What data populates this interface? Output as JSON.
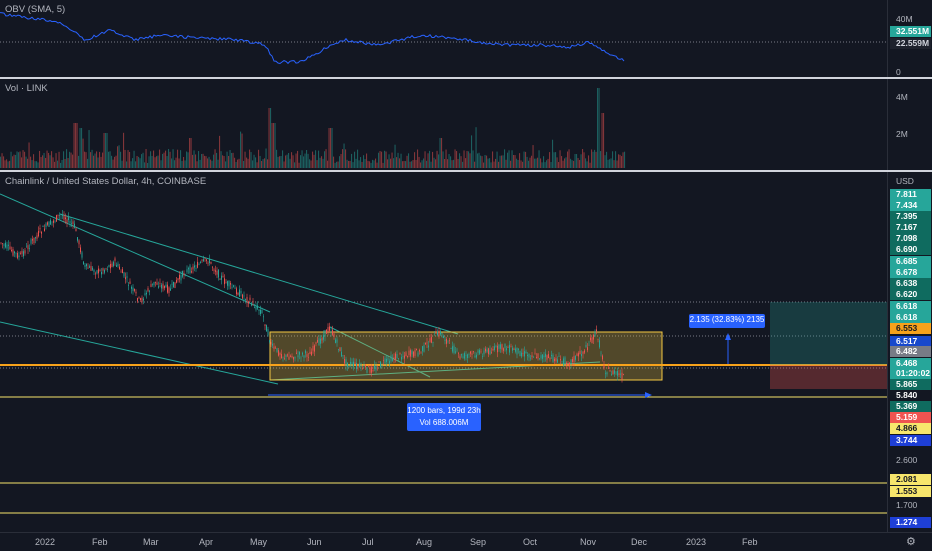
{
  "obv": {
    "title": "OBV (SMA, 5)",
    "ticks": [
      "40M",
      "0"
    ],
    "labels": [
      {
        "text": "32.551M",
        "bg": "#26a69a",
        "fg": "#ffffff"
      },
      {
        "text": "22.559M",
        "bg": "#1e222d",
        "fg": "#d1d4dc"
      }
    ],
    "line_color": "#2962ff"
  },
  "vol": {
    "title": "Vol · LINK",
    "ticks": [
      "4M",
      "2M"
    ]
  },
  "main": {
    "title": "Chainlink / United States Dollar, 4h, COINBASE",
    "currency": "USD",
    "ticks": [
      "2.600",
      "1.700"
    ],
    "price_labels": [
      {
        "text": "7.811",
        "bg": "#26a69a",
        "fg": "#ffffff"
      },
      {
        "text": "7.434",
        "bg": "#26a69a",
        "fg": "#ffffff"
      },
      {
        "text": "7.395",
        "bg": "#0f6b5f",
        "fg": "#ffffff"
      },
      {
        "text": "7.167",
        "bg": "#0f6b5f",
        "fg": "#ffffff"
      },
      {
        "text": "7.098",
        "bg": "#0f6b5f",
        "fg": "#ffffff"
      },
      {
        "text": "6.690",
        "bg": "#0f6b5f",
        "fg": "#ffffff"
      },
      {
        "text": "6.685",
        "bg": "#26a69a",
        "fg": "#ffffff"
      },
      {
        "text": "6.678",
        "bg": "#26a69a",
        "fg": "#ffffff"
      },
      {
        "text": "6.638",
        "bg": "#0f6b5f",
        "fg": "#ffffff"
      },
      {
        "text": "6.620",
        "bg": "#0f6b5f",
        "fg": "#ffffff"
      },
      {
        "text": "6.618",
        "bg": "#26a69a",
        "fg": "#ffffff"
      },
      {
        "text": "6.618",
        "bg": "#26a69a",
        "fg": "#ffffff"
      },
      {
        "text": "6.553",
        "bg": "#f7a21b",
        "fg": "#131722"
      },
      {
        "text": "6.517",
        "bg": "#1848cc",
        "fg": "#ffffff"
      },
      {
        "text": "6.482",
        "bg": "#787b86",
        "fg": "#ffffff"
      },
      {
        "text": "6.468",
        "bg": "#26a69a",
        "fg": "#ffffff"
      },
      {
        "text": "01:20:02",
        "bg": "#26a69a",
        "fg": "#ffffff"
      },
      {
        "text": "5.865",
        "bg": "#0f6b5f",
        "fg": "#ffffff"
      },
      {
        "text": "5.840",
        "bg": "#131722",
        "fg": "#ffffff"
      },
      {
        "text": "5.369",
        "bg": "#0f6b5f",
        "fg": "#ffffff"
      },
      {
        "text": "5.159",
        "bg": "#ef5350",
        "fg": "#ffffff"
      },
      {
        "text": "4.866",
        "bg": "#f7e66c",
        "fg": "#131722"
      },
      {
        "text": "3.744",
        "bg": "#1e3fd6",
        "fg": "#ffffff"
      },
      {
        "text": "2.081",
        "bg": "#f7e66c",
        "fg": "#131722"
      },
      {
        "text": "1.553",
        "bg": "#f7e66c",
        "fg": "#131722"
      },
      {
        "text": "1.274",
        "bg": "#1e3fd6",
        "fg": "#ffffff"
      }
    ],
    "measure_label": "2.135 (32.83%) 2135",
    "range_label_1": "1200 bars, 199d 23h",
    "range_label_2": "Vol 688.006M"
  },
  "time_axis": [
    "2022",
    "Feb",
    "Mar",
    "Apr",
    "May",
    "Jun",
    "Jul",
    "Aug",
    "Sep",
    "Oct",
    "Nov",
    "Dec",
    "2023",
    "Feb"
  ],
  "colors": {
    "bg": "#131722",
    "up": "#26a69a",
    "down": "#ef5350",
    "trend": "#26a69a",
    "range_box": "#f5c842",
    "hline": "#f7e66c",
    "orange_line": "#f7a21b"
  }
}
